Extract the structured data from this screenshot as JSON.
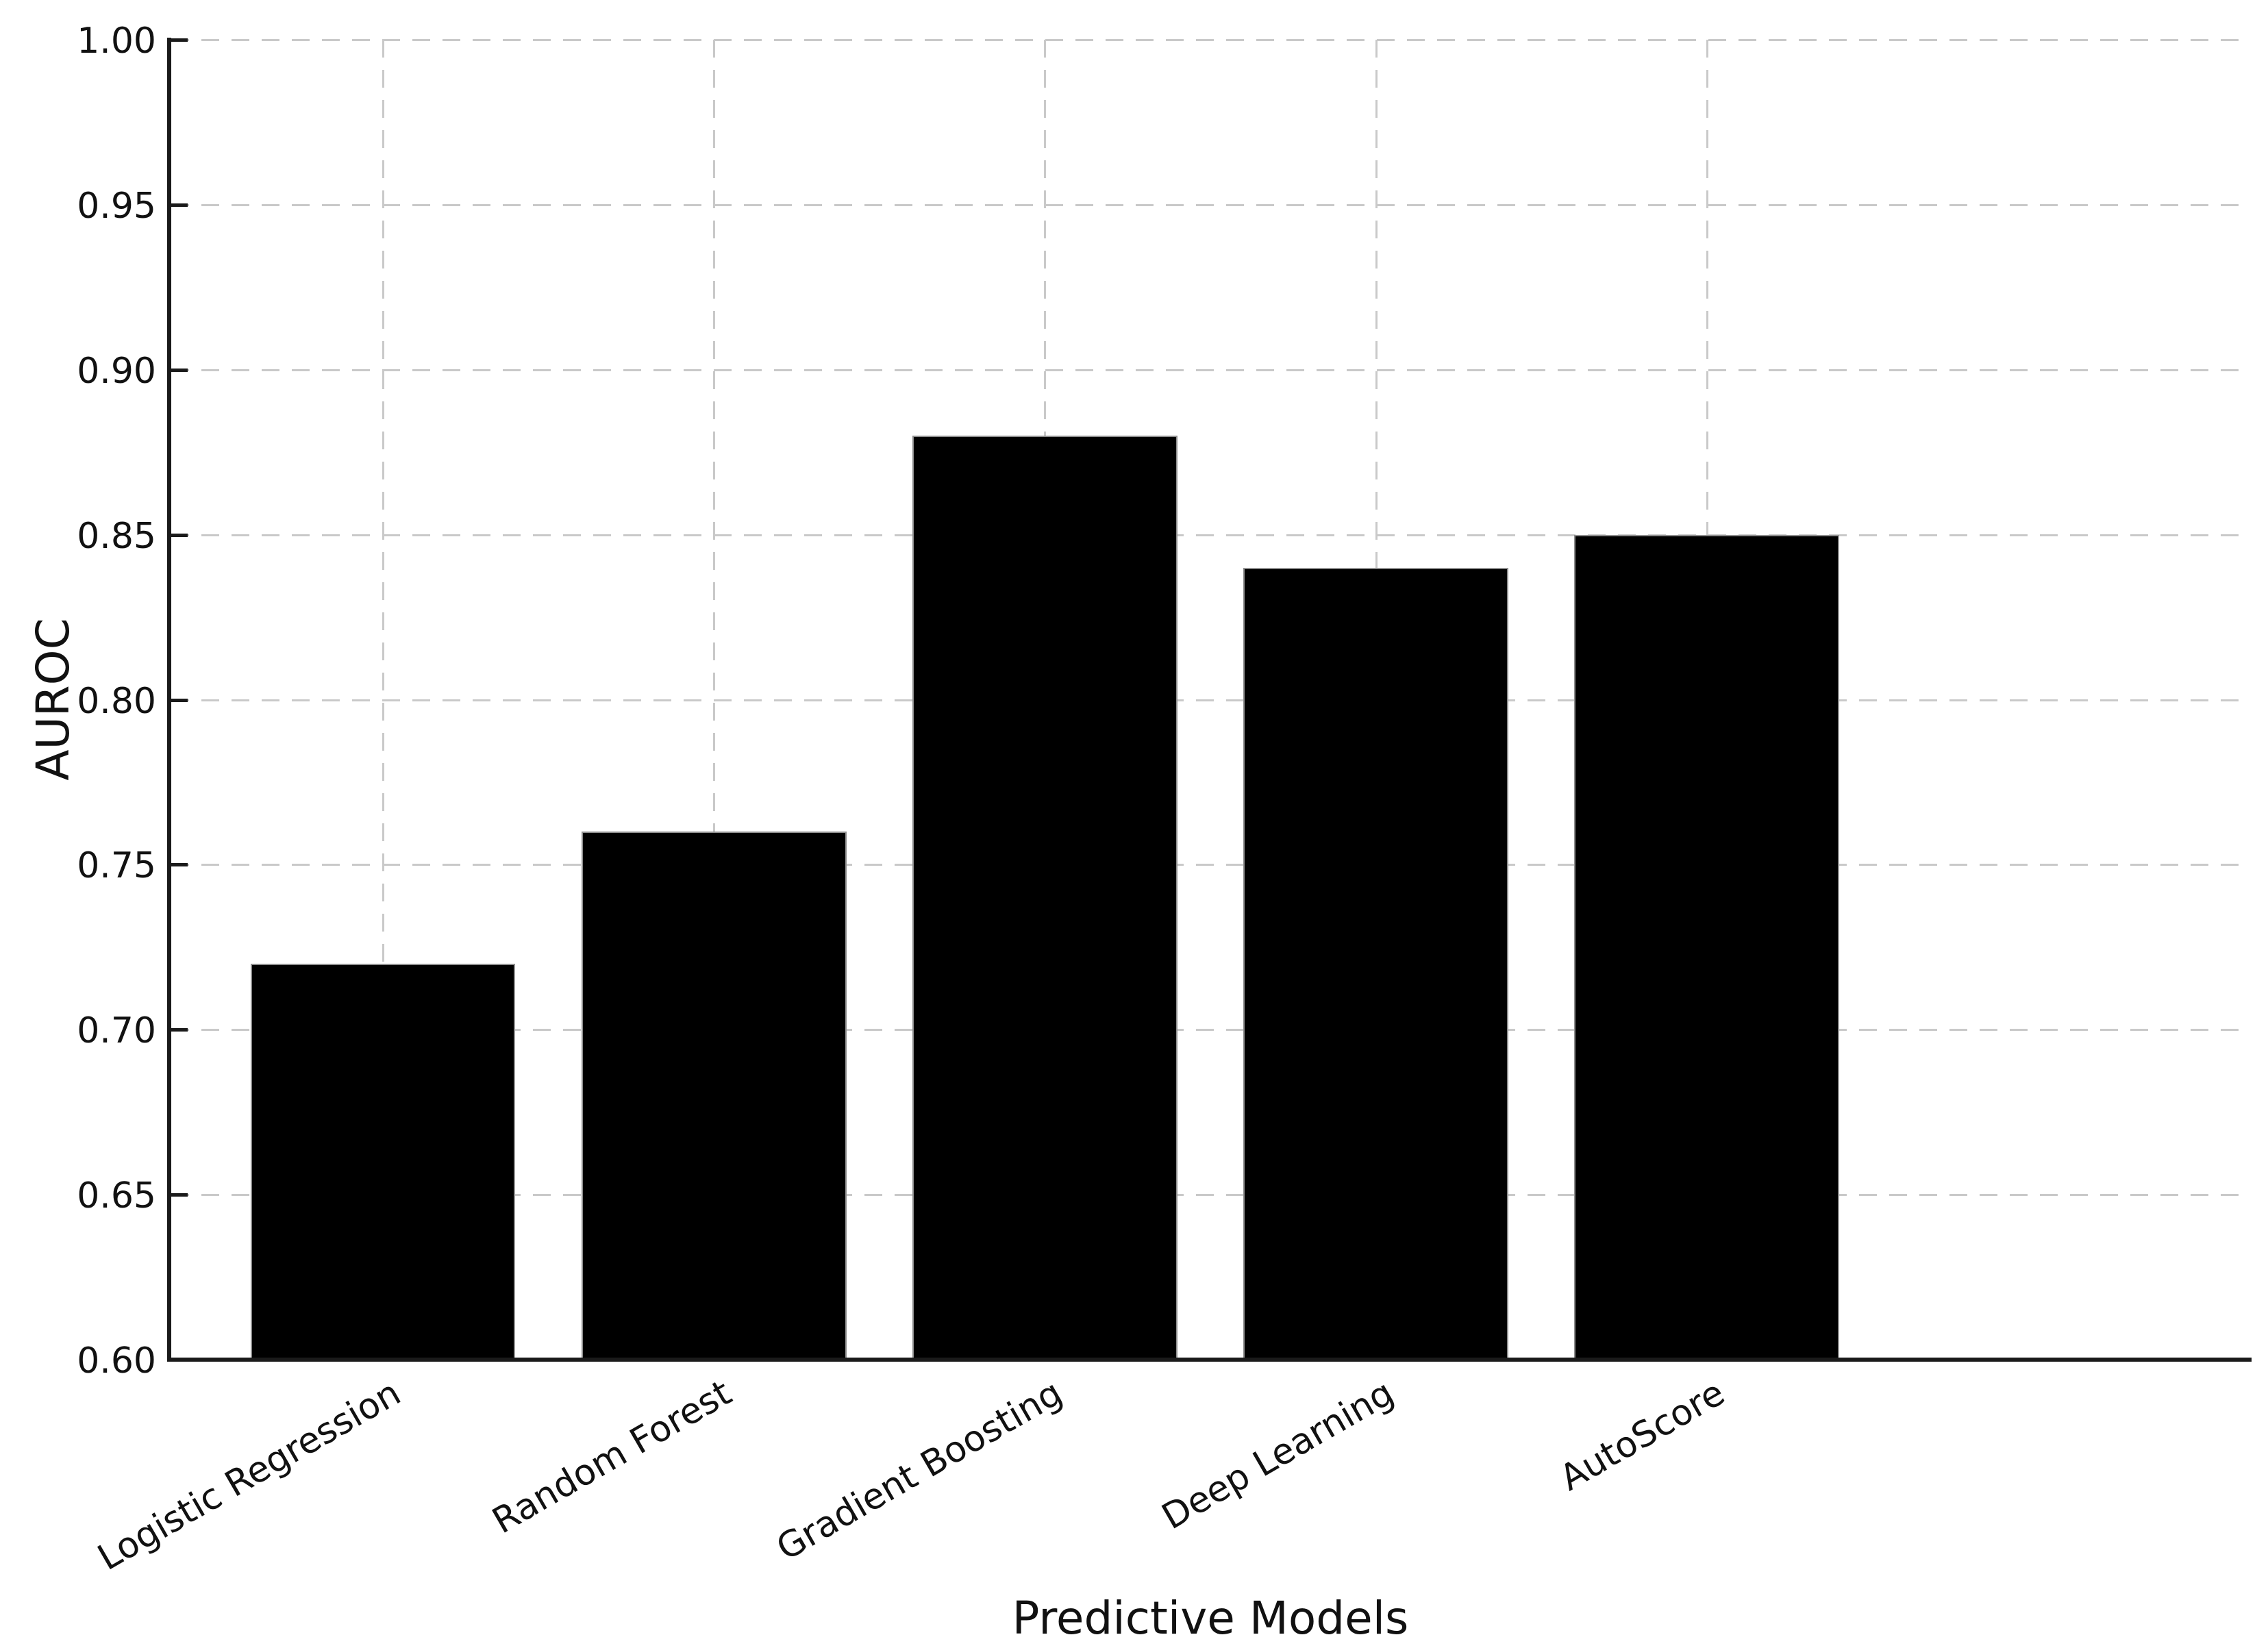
{
  "figure": {
    "background": "#ffffff"
  },
  "chart_data": {
    "type": "bar",
    "title": "",
    "categories": [
      "Logistic Regression",
      "Random Forest",
      "Gradient Boosting",
      "Deep Learning",
      "AutoScore"
    ],
    "values": [
      0.72,
      0.76,
      0.88,
      0.84,
      0.85
    ],
    "xlabel": "Predictive Models",
    "ylabel": "AUROC",
    "ylim": [
      0.6,
      1.0
    ],
    "ytick_labels": [
      "0.60",
      "0.65",
      "0.70",
      "0.75",
      "0.80",
      "0.85",
      "0.90",
      "0.95",
      "1.00"
    ],
    "bar_color": "#000000",
    "bar_edge_color": "#8f8f8f",
    "grid": {
      "style": "dashed",
      "color": "#c9c9c9",
      "horizontal": true,
      "vertical": true
    },
    "legend": "none",
    "x_tick_label_rotation_deg": 30
  },
  "colors": {
    "text": "#111111",
    "spine": "#1a1a1a",
    "tick_mark": "#1a1a1a"
  }
}
